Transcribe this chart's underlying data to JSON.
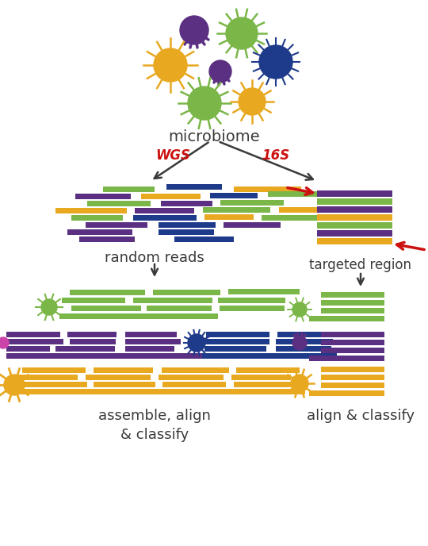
{
  "colors": {
    "green": "#7ab648",
    "purple": "#5b3082",
    "blue": "#1e3a8a",
    "gold": "#e8a820",
    "red": "#cc1111",
    "dark": "#3a3a3a",
    "white": "#ffffff",
    "pink": "#cc44aa"
  },
  "text": {
    "microbiome": "microbiome",
    "wgs": "WGS",
    "16s": "16S",
    "random_reads": "random reads",
    "targeted_region": "targeted region",
    "assemble": "assemble, align\n& classify",
    "align_classify": "align & classify"
  },
  "fig_width": 5.4,
  "fig_height": 6.88,
  "dpi": 100
}
